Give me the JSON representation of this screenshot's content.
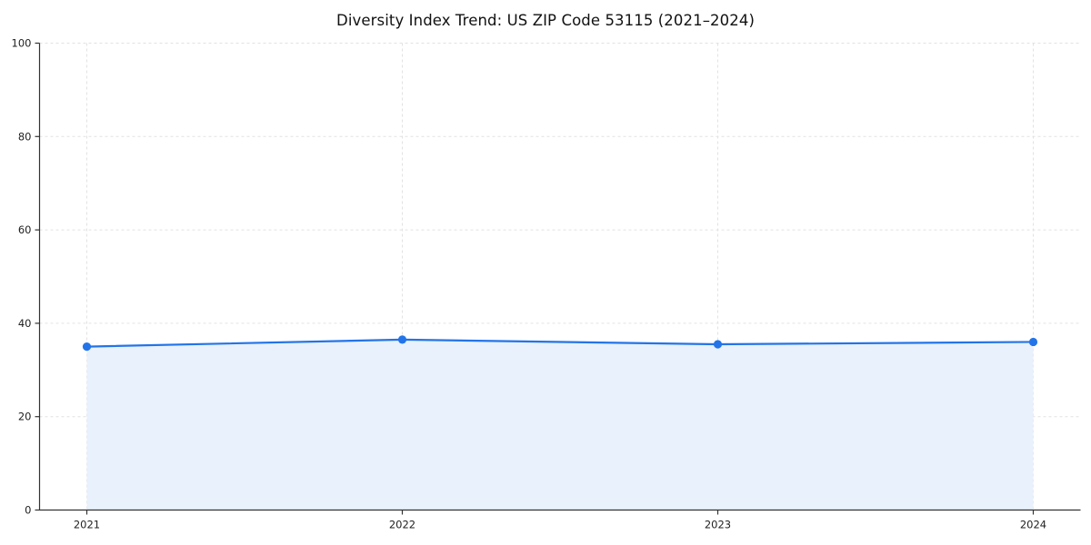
{
  "chart_data": {
    "type": "line",
    "title": "Diversity Index Trend: US ZIP Code 53115 (2021–2024)",
    "categories": [
      "2021",
      "2022",
      "2023",
      "2024"
    ],
    "series": [
      {
        "name": "Diversity Index",
        "values": [
          35.0,
          36.5,
          35.5,
          36.0
        ]
      }
    ],
    "xlabel": "",
    "ylabel": "",
    "ylim": [
      0,
      100
    ],
    "yticks": [
      0,
      20,
      40,
      60,
      80,
      100
    ],
    "grid": "dashed",
    "legend": "none",
    "style": {
      "line_color": "#2374e8",
      "marker_color": "#2374e8",
      "fill_color": "#e9f1fd",
      "grid_color": "#e2e2e2",
      "axis_color": "#333333",
      "area_fill": true,
      "marker": "circle"
    }
  }
}
